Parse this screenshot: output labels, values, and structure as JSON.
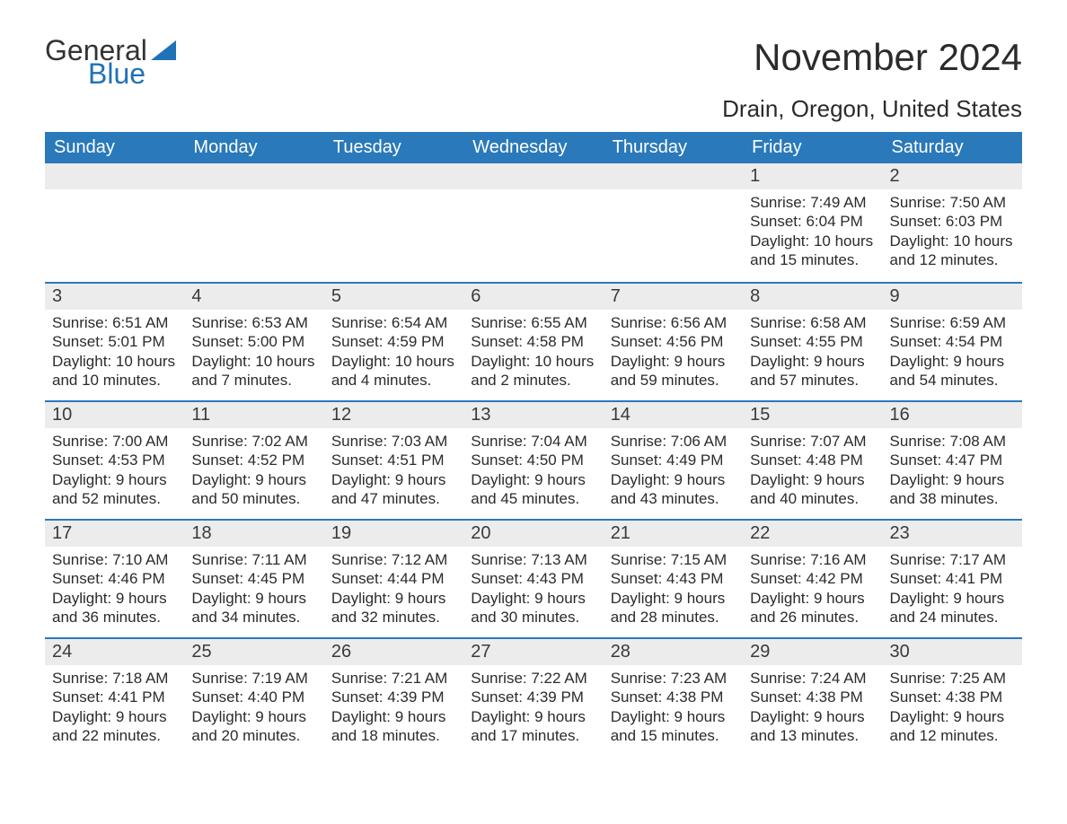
{
  "logo": {
    "word1": "General",
    "word2": "Blue",
    "tri_color": "#2072b8"
  },
  "title": "November 2024",
  "location": "Drain, Oregon, United States",
  "colors": {
    "header_bg": "#2a79ba",
    "header_text": "#ffffff",
    "week_divider": "#2a79ba",
    "daynum_band_bg": "#ececec",
    "body_text": "#2b2b2b",
    "page_bg": "#ffffff"
  },
  "font": {
    "family": "Arial",
    "month_title_pt": 42,
    "location_pt": 26,
    "header_pt": 20,
    "body_pt": 17
  },
  "day_labels": [
    "Sunday",
    "Monday",
    "Tuesday",
    "Wednesday",
    "Thursday",
    "Friday",
    "Saturday"
  ],
  "labels": {
    "sunrise": "Sunrise",
    "sunset": "Sunset",
    "daylight": "Daylight"
  },
  "weeks": [
    [
      null,
      null,
      null,
      null,
      null,
      {
        "n": "1",
        "sunrise": "7:49 AM",
        "sunset": "6:04 PM",
        "daylight": "10 hours and 15 minutes."
      },
      {
        "n": "2",
        "sunrise": "7:50 AM",
        "sunset": "6:03 PM",
        "daylight": "10 hours and 12 minutes."
      }
    ],
    [
      {
        "n": "3",
        "sunrise": "6:51 AM",
        "sunset": "5:01 PM",
        "daylight": "10 hours and 10 minutes."
      },
      {
        "n": "4",
        "sunrise": "6:53 AM",
        "sunset": "5:00 PM",
        "daylight": "10 hours and 7 minutes."
      },
      {
        "n": "5",
        "sunrise": "6:54 AM",
        "sunset": "4:59 PM",
        "daylight": "10 hours and 4 minutes."
      },
      {
        "n": "6",
        "sunrise": "6:55 AM",
        "sunset": "4:58 PM",
        "daylight": "10 hours and 2 minutes."
      },
      {
        "n": "7",
        "sunrise": "6:56 AM",
        "sunset": "4:56 PM",
        "daylight": "9 hours and 59 minutes."
      },
      {
        "n": "8",
        "sunrise": "6:58 AM",
        "sunset": "4:55 PM",
        "daylight": "9 hours and 57 minutes."
      },
      {
        "n": "9",
        "sunrise": "6:59 AM",
        "sunset": "4:54 PM",
        "daylight": "9 hours and 54 minutes."
      }
    ],
    [
      {
        "n": "10",
        "sunrise": "7:00 AM",
        "sunset": "4:53 PM",
        "daylight": "9 hours and 52 minutes."
      },
      {
        "n": "11",
        "sunrise": "7:02 AM",
        "sunset": "4:52 PM",
        "daylight": "9 hours and 50 minutes."
      },
      {
        "n": "12",
        "sunrise": "7:03 AM",
        "sunset": "4:51 PM",
        "daylight": "9 hours and 47 minutes."
      },
      {
        "n": "13",
        "sunrise": "7:04 AM",
        "sunset": "4:50 PM",
        "daylight": "9 hours and 45 minutes."
      },
      {
        "n": "14",
        "sunrise": "7:06 AM",
        "sunset": "4:49 PM",
        "daylight": "9 hours and 43 minutes."
      },
      {
        "n": "15",
        "sunrise": "7:07 AM",
        "sunset": "4:48 PM",
        "daylight": "9 hours and 40 minutes."
      },
      {
        "n": "16",
        "sunrise": "7:08 AM",
        "sunset": "4:47 PM",
        "daylight": "9 hours and 38 minutes."
      }
    ],
    [
      {
        "n": "17",
        "sunrise": "7:10 AM",
        "sunset": "4:46 PM",
        "daylight": "9 hours and 36 minutes."
      },
      {
        "n": "18",
        "sunrise": "7:11 AM",
        "sunset": "4:45 PM",
        "daylight": "9 hours and 34 minutes."
      },
      {
        "n": "19",
        "sunrise": "7:12 AM",
        "sunset": "4:44 PM",
        "daylight": "9 hours and 32 minutes."
      },
      {
        "n": "20",
        "sunrise": "7:13 AM",
        "sunset": "4:43 PM",
        "daylight": "9 hours and 30 minutes."
      },
      {
        "n": "21",
        "sunrise": "7:15 AM",
        "sunset": "4:43 PM",
        "daylight": "9 hours and 28 minutes."
      },
      {
        "n": "22",
        "sunrise": "7:16 AM",
        "sunset": "4:42 PM",
        "daylight": "9 hours and 26 minutes."
      },
      {
        "n": "23",
        "sunrise": "7:17 AM",
        "sunset": "4:41 PM",
        "daylight": "9 hours and 24 minutes."
      }
    ],
    [
      {
        "n": "24",
        "sunrise": "7:18 AM",
        "sunset": "4:41 PM",
        "daylight": "9 hours and 22 minutes."
      },
      {
        "n": "25",
        "sunrise": "7:19 AM",
        "sunset": "4:40 PM",
        "daylight": "9 hours and 20 minutes."
      },
      {
        "n": "26",
        "sunrise": "7:21 AM",
        "sunset": "4:39 PM",
        "daylight": "9 hours and 18 minutes."
      },
      {
        "n": "27",
        "sunrise": "7:22 AM",
        "sunset": "4:39 PM",
        "daylight": "9 hours and 17 minutes."
      },
      {
        "n": "28",
        "sunrise": "7:23 AM",
        "sunset": "4:38 PM",
        "daylight": "9 hours and 15 minutes."
      },
      {
        "n": "29",
        "sunrise": "7:24 AM",
        "sunset": "4:38 PM",
        "daylight": "9 hours and 13 minutes."
      },
      {
        "n": "30",
        "sunrise": "7:25 AM",
        "sunset": "4:38 PM",
        "daylight": "9 hours and 12 minutes."
      }
    ]
  ]
}
